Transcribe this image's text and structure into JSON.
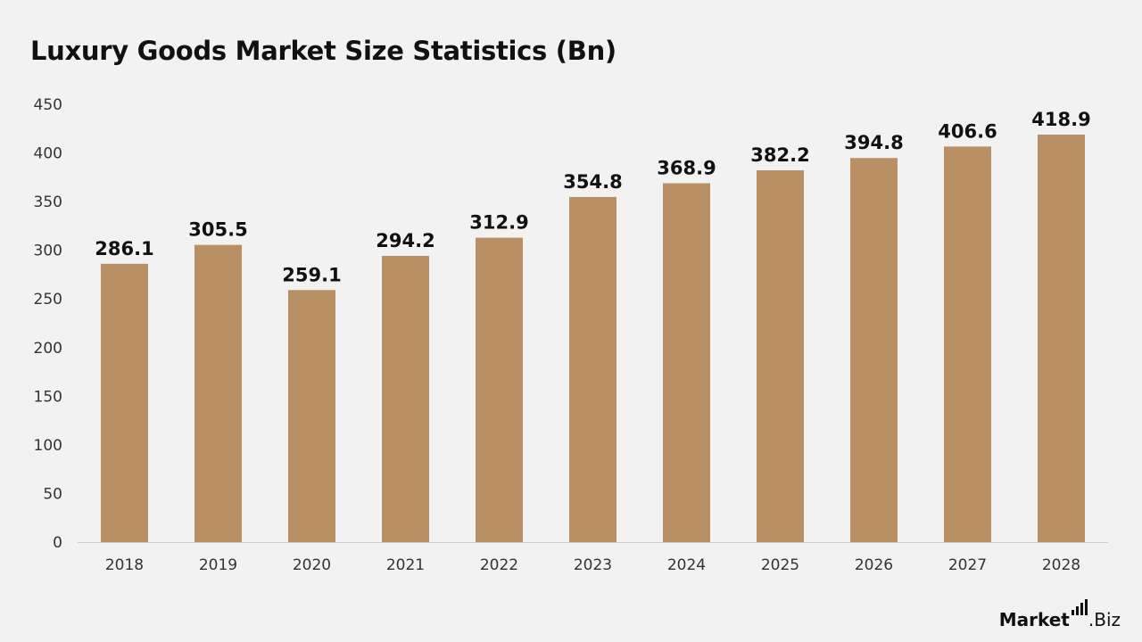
{
  "brand": {
    "name": "Market",
    "suffix": ".Biz"
  },
  "colors": {
    "background": "#f2f2f2",
    "bar": "#b89064",
    "axis": "#cccccc",
    "text": "#111111"
  },
  "chart_data": {
    "type": "bar",
    "title": "Luxury Goods Market Size Statistics (Bn)",
    "xlabel": "",
    "ylabel": "",
    "categories": [
      "2018",
      "2019",
      "2020",
      "2021",
      "2022",
      "2023",
      "2024",
      "2025",
      "2026",
      "2027",
      "2028"
    ],
    "values": [
      286.1,
      305.5,
      259.1,
      294.2,
      312.9,
      354.8,
      368.9,
      382.2,
      394.8,
      406.6,
      418.9
    ],
    "ylim": [
      0,
      450
    ],
    "yticks": [
      0,
      50,
      100,
      150,
      200,
      250,
      300,
      350,
      400,
      450
    ],
    "data_labels": true,
    "grid": false,
    "legend": "none"
  }
}
